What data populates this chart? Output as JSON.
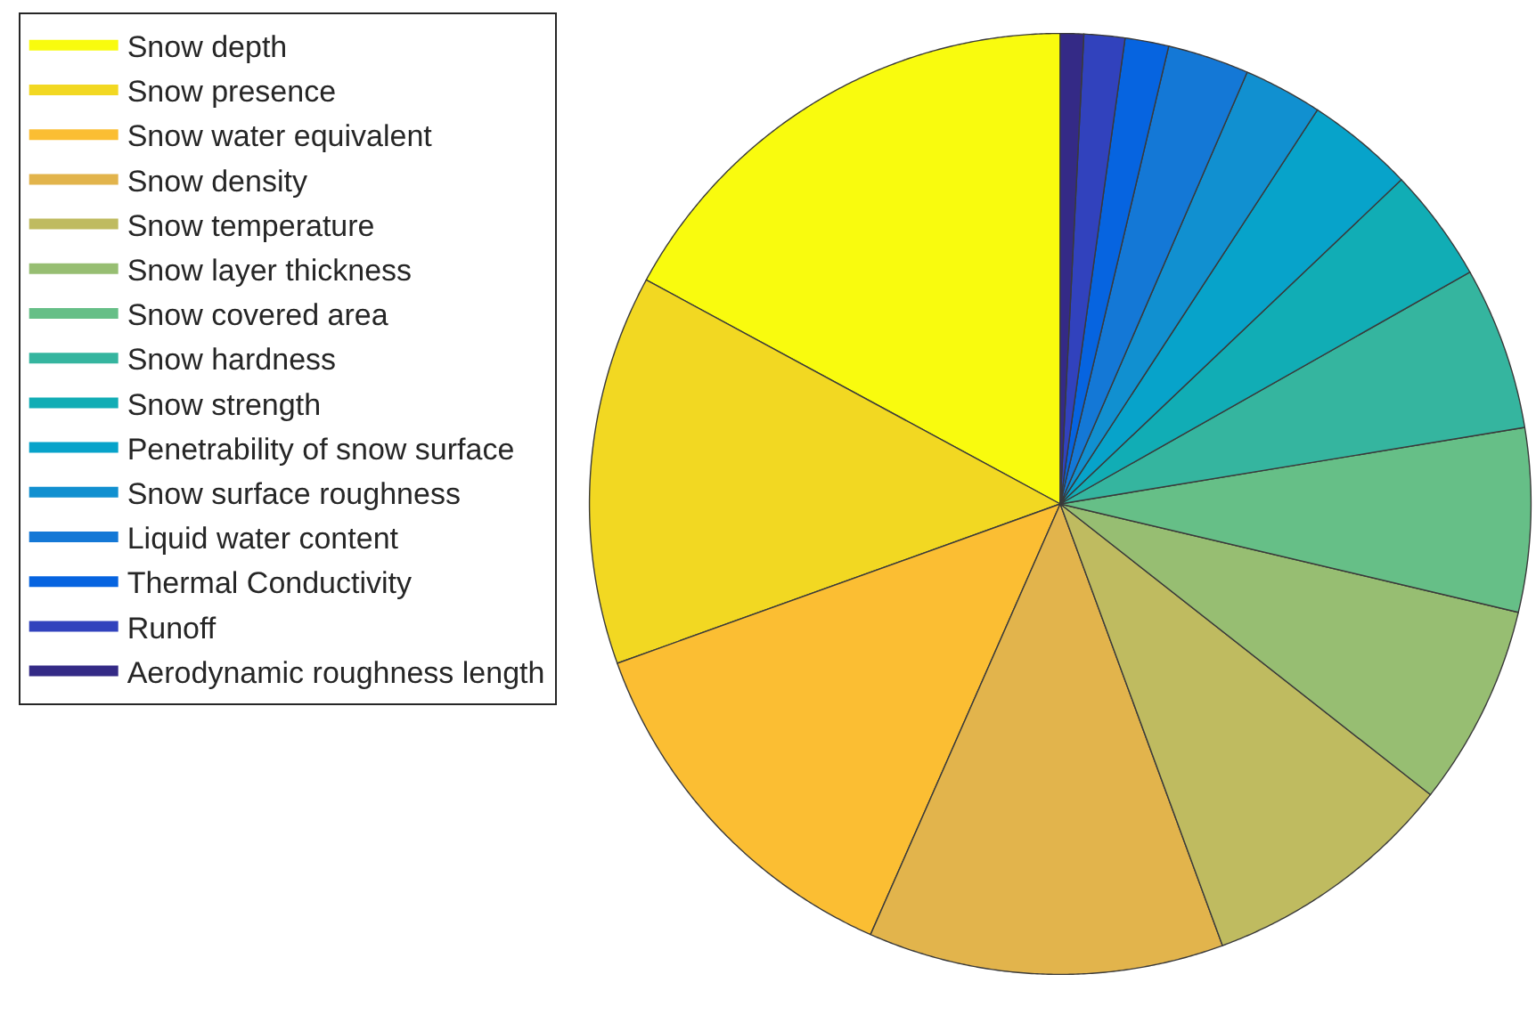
{
  "chart_data": {
    "type": "pie",
    "categories": [
      "Snow depth",
      "Snow presence",
      "Snow water equivalent",
      "Snow density",
      "Snow temperature",
      "Snow layer thickness",
      "Snow covered area",
      "Snow hardness",
      "Snow strength",
      "Penetrability of snow surface",
      "Snow surface roughness",
      "Liquid water content",
      "Thermal Conductivity",
      "Runoff",
      "Aerodynamic roughness length"
    ],
    "values": [
      17.1,
      13.4,
      12.9,
      12.2,
      8.8,
      6.9,
      6.3,
      5.6,
      3.9,
      3.7,
      2.7,
      2.8,
      1.5,
      1.4,
      0.8
    ],
    "colors": [
      "#f9fb0e",
      "#f2d822",
      "#fbbe33",
      "#e2b44c",
      "#bfbb60",
      "#97be72",
      "#66bf87",
      "#35b59f",
      "#11adb5",
      "#07a3ca",
      "#1190d0",
      "#1478d6",
      "#0664e0",
      "#3142bd",
      "#342a86"
    ],
    "legend": "top left"
  }
}
